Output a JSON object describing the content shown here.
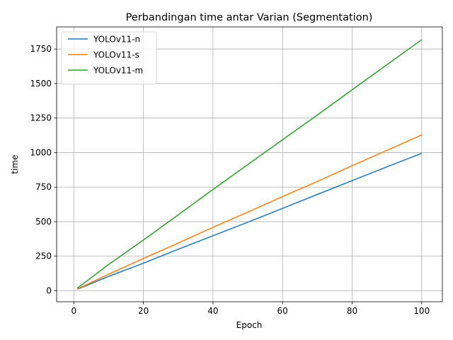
{
  "chart_data": {
    "type": "line",
    "title": "Perbandingan time antar Varian (Segmentation)",
    "xlabel": "Epoch",
    "ylabel": "time",
    "xlim": [
      -4.95,
      105.95
    ],
    "ylim": [
      -80,
      1910
    ],
    "xticks": [
      0,
      20,
      40,
      60,
      80,
      100
    ],
    "yticks": [
      0,
      250,
      500,
      750,
      1000,
      1250,
      1500,
      1750
    ],
    "grid": true,
    "legend_position": "top-left",
    "series": [
      {
        "name": "YOLOv11-n",
        "color": "#1f77b4",
        "x": [
          1,
          10,
          20,
          30,
          40,
          50,
          60,
          70,
          80,
          90,
          100
        ],
        "y": [
          10,
          104,
          199,
          300,
          398,
          496,
          596,
          697,
          797,
          897,
          995
        ]
      },
      {
        "name": "YOLOv11-s",
        "color": "#ff7f0e",
        "x": [
          1,
          10,
          20,
          30,
          40,
          50,
          60,
          70,
          80,
          90,
          100
        ],
        "y": [
          12,
          120,
          233,
          345,
          459,
          569,
          681,
          791,
          905,
          1016,
          1128
        ]
      },
      {
        "name": "YOLOv11-m",
        "color": "#2ca02c",
        "x": [
          1,
          10,
          20,
          30,
          40,
          50,
          60,
          70,
          80,
          90,
          100
        ],
        "y": [
          18,
          190,
          367,
          549,
          733,
          913,
          1093,
          1272,
          1455,
          1636,
          1818
        ]
      }
    ]
  }
}
